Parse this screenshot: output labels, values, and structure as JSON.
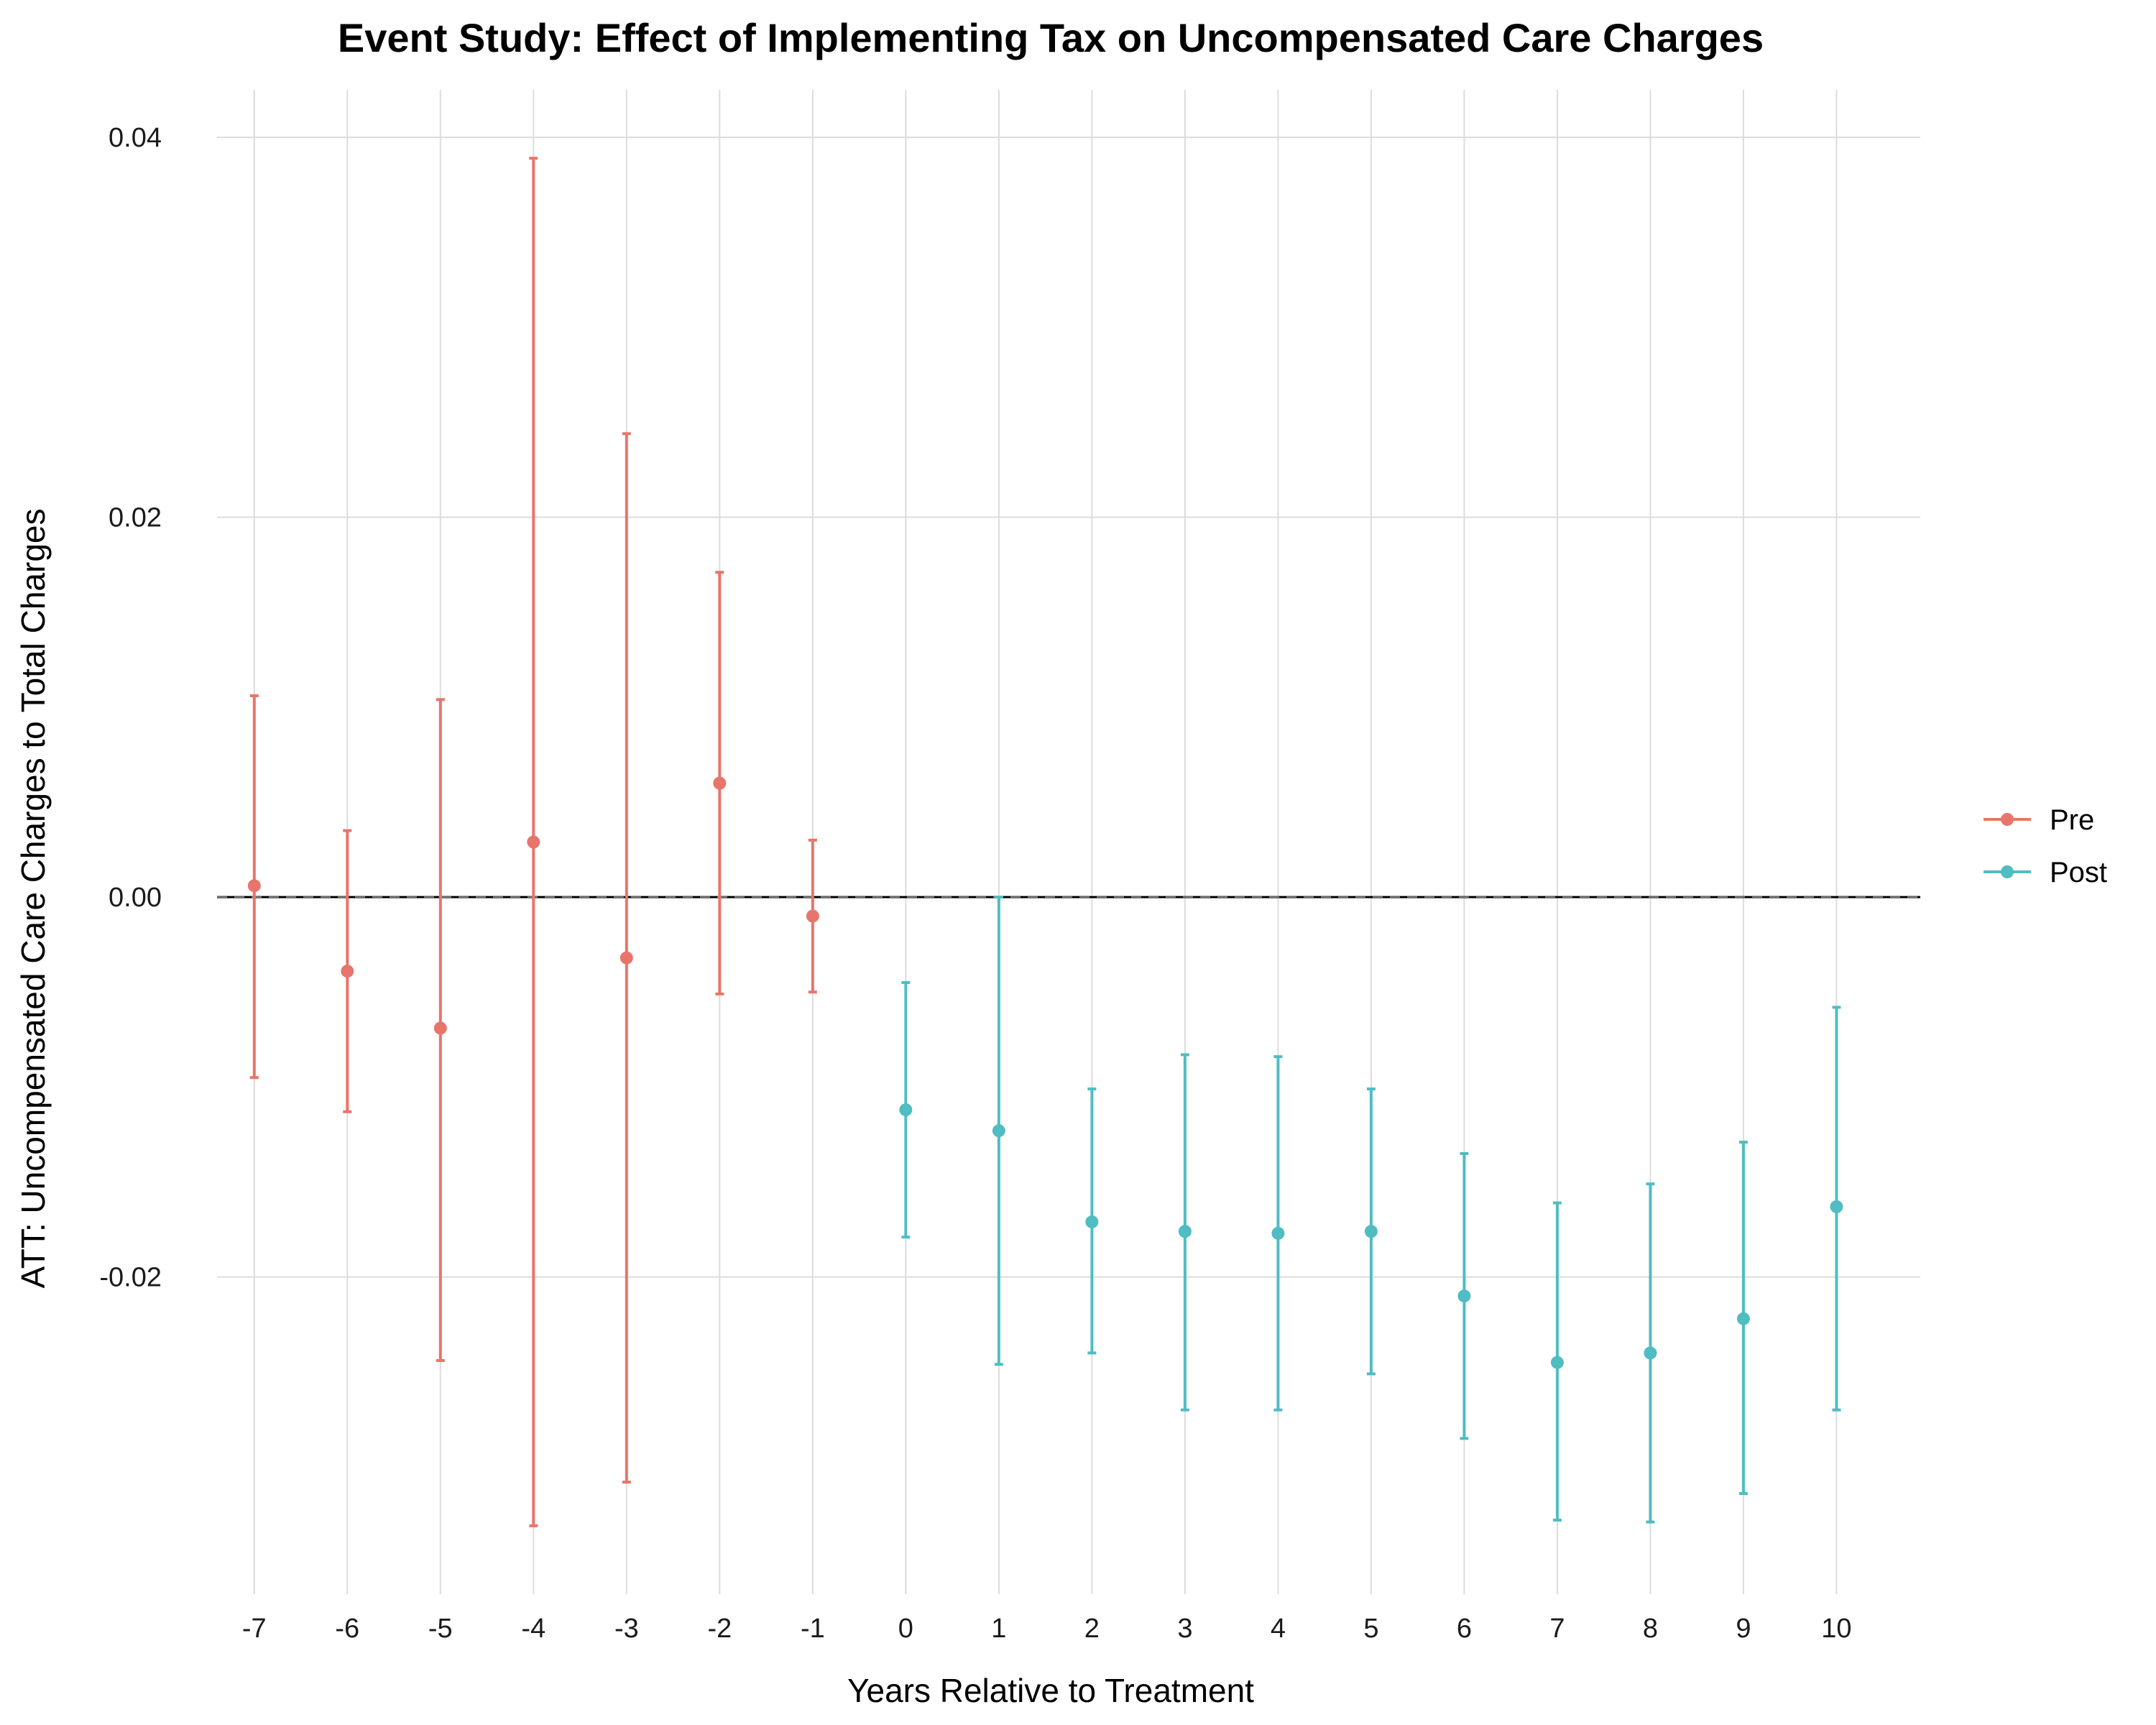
{
  "chart_data": {
    "type": "scatter",
    "title": "Event Study: Effect of Implementing Tax on Uncompensated Care Charges",
    "xlabel": "Years Relative to Treatment",
    "ylabel": "ATT: Uncompensated Care Charges to Total Charges",
    "x_ticks": [
      -7,
      -6,
      -5,
      -4,
      -3,
      -2,
      -1,
      0,
      1,
      2,
      3,
      4,
      5,
      6,
      7,
      8,
      9,
      10
    ],
    "y_ticks": [
      -0.02,
      0.0,
      0.02,
      0.04
    ],
    "y_tick_labels": [
      "-0.02",
      "0.00",
      "0.02",
      "0.04"
    ],
    "xlim": [
      -7.4,
      10.9
    ],
    "ylim": [
      -0.0367,
      0.0425
    ],
    "grid": true,
    "reference_line": 0,
    "legend_position": "right",
    "series": [
      {
        "name": "Pre",
        "color": "#E8756B",
        "x": [
          -7,
          -6,
          -5,
          -4,
          -3,
          -2,
          -1
        ],
        "y": [
          0.0006,
          -0.0039,
          -0.0069,
          0.0029,
          -0.0032,
          0.006,
          -0.001
        ],
        "lower": [
          -0.0095,
          -0.0113,
          -0.0244,
          -0.0331,
          -0.0308,
          -0.0051,
          -0.005
        ],
        "upper": [
          0.0106,
          0.0035,
          0.0104,
          0.0389,
          0.0244,
          0.0171,
          0.003
        ]
      },
      {
        "name": "Post",
        "color": "#4FBDC2",
        "x": [
          0,
          1,
          2,
          3,
          4,
          5,
          6,
          7,
          8,
          9,
          10
        ],
        "y": [
          -0.0112,
          -0.0123,
          -0.0171,
          -0.0176,
          -0.0177,
          -0.0176,
          -0.021,
          -0.0245,
          -0.024,
          -0.0222,
          -0.0163
        ],
        "lower": [
          -0.0179,
          -0.0246,
          -0.024,
          -0.027,
          -0.027,
          -0.0251,
          -0.0285,
          -0.0328,
          -0.0329,
          -0.0314,
          -0.027
        ],
        "upper": [
          -0.0045,
          0.0,
          -0.0101,
          -0.0083,
          -0.0084,
          -0.0101,
          -0.0135,
          -0.0161,
          -0.0151,
          -0.0129,
          -0.0058
        ]
      }
    ]
  }
}
